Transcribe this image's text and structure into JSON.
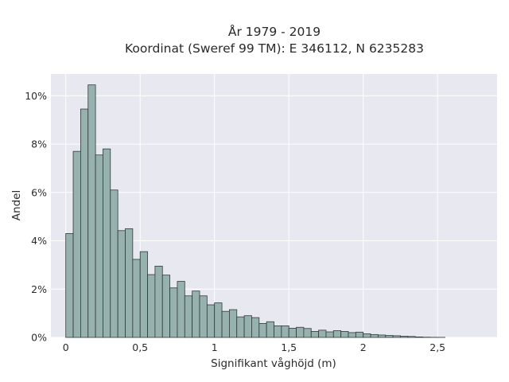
{
  "chart_data": {
    "type": "bar",
    "title": [
      "År 1979 - 2019",
      "Koordinat (Sweref 99 TM): E 346112, N 6235283"
    ],
    "xlabel": "Signifikant våghöjd (m)",
    "ylabel": "Andel",
    "xlim": [
      -0.1,
      2.9
    ],
    "ylim": [
      0,
      10.9
    ],
    "xticks": [
      {
        "value": 0,
        "label": "0"
      },
      {
        "value": 0.5,
        "label": "0,5"
      },
      {
        "value": 1,
        "label": "1"
      },
      {
        "value": 1.5,
        "label": "1,5"
      },
      {
        "value": 2,
        "label": "2"
      },
      {
        "value": 2.5,
        "label": "2,5"
      }
    ],
    "yticks": [
      {
        "value": 0,
        "label": "0%"
      },
      {
        "value": 2,
        "label": "2%"
      },
      {
        "value": 4,
        "label": "4%"
      },
      {
        "value": 6,
        "label": "6%"
      },
      {
        "value": 8,
        "label": "8%"
      },
      {
        "value": 10,
        "label": "10%"
      }
    ],
    "grid": true,
    "bin_width": 0.05,
    "bin_start": 0.0,
    "values": [
      4.3,
      7.7,
      9.45,
      10.45,
      7.55,
      7.8,
      6.1,
      4.42,
      4.5,
      3.23,
      3.55,
      2.6,
      2.95,
      2.58,
      2.05,
      2.32,
      1.72,
      1.92,
      1.72,
      1.35,
      1.43,
      1.08,
      1.15,
      0.85,
      0.9,
      0.82,
      0.58,
      0.65,
      0.48,
      0.48,
      0.38,
      0.42,
      0.37,
      0.25,
      0.3,
      0.23,
      0.28,
      0.25,
      0.2,
      0.22,
      0.15,
      0.12,
      0.1,
      0.08,
      0.07,
      0.05,
      0.04,
      0.02,
      0.01,
      0.005,
      0.003,
      0.0
    ]
  }
}
